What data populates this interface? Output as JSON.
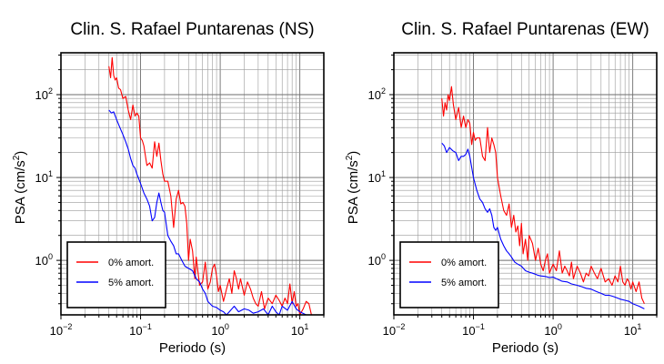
{
  "chart_data": [
    {
      "type": "line",
      "title": "Clin. S. Rafael Puntarenas (NS)",
      "xlabel": "Periodo (s)",
      "ylabel": "PSA (cm/s²)",
      "ylabel_base": "PSA (cm/s",
      "ylabel_sup": "2",
      "ylabel_tail": ")",
      "xscale": "log",
      "yscale": "log",
      "xlim": [
        0.01,
        20
      ],
      "ylim": [
        0.22,
        320
      ],
      "grid": true,
      "legend_position": "bottom-left",
      "xticks": [
        {
          "value": 0.01,
          "base": "10",
          "exp": "−2"
        },
        {
          "value": 0.1,
          "base": "10",
          "exp": "−1"
        },
        {
          "value": 1,
          "base": "10",
          "exp": "0"
        },
        {
          "value": 10,
          "base": "10",
          "exp": "1"
        }
      ],
      "yticks": [
        {
          "value": 1,
          "base": "10",
          "exp": "0"
        },
        {
          "value": 10,
          "base": "10",
          "exp": "1"
        },
        {
          "value": 100,
          "base": "10",
          "exp": "2"
        }
      ],
      "series": [
        {
          "name": "0% amort.",
          "color": "#ff0000",
          "x": [
            0.04,
            0.042,
            0.044,
            0.046,
            0.048,
            0.05,
            0.053,
            0.056,
            0.06,
            0.065,
            0.07,
            0.075,
            0.08,
            0.085,
            0.09,
            0.095,
            0.1,
            0.105,
            0.11,
            0.12,
            0.13,
            0.14,
            0.15,
            0.16,
            0.17,
            0.18,
            0.19,
            0.2,
            0.22,
            0.24,
            0.26,
            0.28,
            0.3,
            0.32,
            0.34,
            0.36,
            0.38,
            0.4,
            0.42,
            0.45,
            0.48,
            0.5,
            0.55,
            0.6,
            0.65,
            0.7,
            0.75,
            0.8,
            0.85,
            0.9,
            0.95,
            1.0,
            1.1,
            1.2,
            1.3,
            1.4,
            1.5,
            1.6,
            1.7,
            1.8,
            2.0,
            2.2,
            2.4,
            2.6,
            2.8,
            3.0,
            3.3,
            3.6,
            4.0,
            4.5,
            5.0,
            5.5,
            6.0,
            6.5,
            7.0,
            7.5,
            8.0,
            8.5,
            9.0,
            9.5,
            10.0,
            11.0,
            12.0,
            13.0,
            14.0
          ],
          "y": [
            220,
            160,
            280,
            170,
            150,
            160,
            120,
            115,
            90,
            95,
            65,
            50,
            75,
            55,
            60,
            55,
            30,
            28,
            24,
            14,
            15,
            13,
            27,
            18,
            26,
            16,
            11,
            9,
            9,
            6,
            2.5,
            5.5,
            7,
            4.8,
            5,
            4.5,
            2.8,
            1.0,
            1.8,
            1.3,
            0.6,
            1.1,
            0.5,
            0.55,
            0.95,
            0.45,
            0.55,
            0.8,
            0.9,
            0.65,
            0.42,
            0.5,
            0.32,
            0.45,
            0.6,
            0.4,
            0.75,
            0.6,
            0.45,
            0.6,
            0.38,
            0.55,
            0.45,
            0.35,
            0.3,
            0.28,
            0.42,
            0.26,
            0.35,
            0.3,
            0.38,
            0.33,
            0.28,
            0.35,
            0.3,
            0.52,
            0.3,
            0.42,
            0.28,
            0.3,
            0.22,
            0.26,
            0.32,
            0.3,
            0.22
          ]
        },
        {
          "name": "5% amort.",
          "color": "#0000ff",
          "x": [
            0.04,
            0.043,
            0.046,
            0.05,
            0.055,
            0.06,
            0.065,
            0.07,
            0.075,
            0.08,
            0.085,
            0.09,
            0.1,
            0.11,
            0.12,
            0.13,
            0.14,
            0.15,
            0.16,
            0.17,
            0.18,
            0.19,
            0.2,
            0.22,
            0.24,
            0.26,
            0.28,
            0.3,
            0.33,
            0.36,
            0.4,
            0.45,
            0.5,
            0.55,
            0.6,
            0.65,
            0.7,
            0.8,
            0.9,
            1.0,
            1.1,
            1.2,
            1.3,
            1.5,
            1.7,
            2.0,
            2.3,
            2.6,
            3.0,
            3.5,
            4.0,
            4.5,
            5.0,
            5.5,
            6.0,
            7.0,
            8.0,
            9.0,
            10.0,
            12.0,
            14.0
          ],
          "y": [
            65,
            60,
            62,
            50,
            40,
            33,
            27,
            22,
            17,
            14,
            13,
            11,
            8.5,
            6.5,
            5.5,
            4.5,
            3.0,
            3.3,
            5.0,
            6.5,
            5.0,
            4.0,
            3.8,
            2.0,
            1.7,
            1.5,
            1.2,
            1.2,
            1.0,
            0.85,
            0.8,
            0.75,
            0.6,
            0.55,
            0.45,
            0.4,
            0.32,
            0.28,
            0.27,
            0.25,
            0.24,
            0.22,
            0.24,
            0.28,
            0.24,
            0.26,
            0.25,
            0.23,
            0.24,
            0.26,
            0.22,
            0.28,
            0.24,
            0.22,
            0.28,
            0.25,
            0.32,
            0.26,
            0.24,
            0.22,
            0.22
          ]
        }
      ]
    },
    {
      "type": "line",
      "title": "Clin. S. Rafael Puntarenas (EW)",
      "xlabel": "Periodo (s)",
      "ylabel": "PSA (cm/s²)",
      "ylabel_base": "PSA (cm/s",
      "ylabel_sup": "2",
      "ylabel_tail": ")",
      "xscale": "log",
      "yscale": "log",
      "xlim": [
        0.01,
        20
      ],
      "ylim": [
        0.22,
        320
      ],
      "grid": true,
      "legend_position": "bottom-left",
      "xticks": [
        {
          "value": 0.01,
          "base": "10",
          "exp": "−2"
        },
        {
          "value": 0.1,
          "base": "10",
          "exp": "−1"
        },
        {
          "value": 1,
          "base": "10",
          "exp": "0"
        },
        {
          "value": 10,
          "base": "10",
          "exp": "1"
        }
      ],
      "yticks": [
        {
          "value": 1,
          "base": "10",
          "exp": "0"
        },
        {
          "value": 10,
          "base": "10",
          "exp": "1"
        },
        {
          "value": 100,
          "base": "10",
          "exp": "2"
        }
      ],
      "series": [
        {
          "name": "0% amort.",
          "color": "#ff0000",
          "x": [
            0.04,
            0.042,
            0.044,
            0.046,
            0.048,
            0.05,
            0.053,
            0.056,
            0.06,
            0.065,
            0.07,
            0.075,
            0.08,
            0.085,
            0.09,
            0.095,
            0.1,
            0.105,
            0.11,
            0.12,
            0.13,
            0.14,
            0.15,
            0.16,
            0.17,
            0.18,
            0.19,
            0.2,
            0.22,
            0.24,
            0.26,
            0.28,
            0.3,
            0.32,
            0.34,
            0.36,
            0.38,
            0.4,
            0.42,
            0.45,
            0.48,
            0.5,
            0.55,
            0.6,
            0.65,
            0.7,
            0.75,
            0.8,
            0.85,
            0.9,
            0.95,
            1.0,
            1.1,
            1.2,
            1.3,
            1.4,
            1.5,
            1.6,
            1.7,
            1.8,
            2.0,
            2.2,
            2.4,
            2.6,
            2.8,
            3.0,
            3.3,
            3.6,
            4.0,
            4.5,
            5.0,
            5.5,
            6.0,
            6.5,
            7.0,
            7.5,
            8.0,
            8.5,
            9.0,
            9.5,
            10.0,
            11.0,
            12.0,
            13.0,
            14.0
          ],
          "y": [
            90,
            55,
            80,
            65,
            100,
            85,
            125,
            75,
            50,
            70,
            40,
            55,
            40,
            50,
            45,
            25,
            35,
            28,
            30,
            30,
            18,
            16,
            40,
            20,
            30,
            25,
            20,
            10,
            6,
            4,
            3.5,
            4.8,
            2.5,
            3.5,
            2.2,
            2.6,
            1.5,
            2.8,
            1.2,
            1.8,
            1.0,
            2.0,
            1.6,
            1.0,
            1.4,
            0.9,
            0.75,
            1.0,
            1.2,
            0.7,
            0.8,
            0.9,
            0.75,
            1.3,
            0.7,
            0.85,
            0.75,
            0.65,
            0.95,
            0.6,
            0.85,
            0.7,
            0.55,
            0.7,
            0.65,
            0.85,
            0.7,
            0.6,
            0.8,
            0.55,
            0.6,
            0.5,
            0.65,
            0.55,
            0.85,
            0.55,
            0.5,
            0.6,
            0.55,
            0.45,
            0.55,
            0.42,
            0.55,
            0.35,
            0.3
          ]
        },
        {
          "name": "5% amort.",
          "color": "#0000ff",
          "x": [
            0.04,
            0.043,
            0.046,
            0.05,
            0.055,
            0.06,
            0.065,
            0.07,
            0.075,
            0.08,
            0.085,
            0.09,
            0.1,
            0.11,
            0.12,
            0.13,
            0.14,
            0.15,
            0.16,
            0.17,
            0.18,
            0.19,
            0.2,
            0.22,
            0.24,
            0.26,
            0.28,
            0.3,
            0.33,
            0.36,
            0.4,
            0.45,
            0.5,
            0.55,
            0.6,
            0.65,
            0.7,
            0.8,
            0.9,
            1.0,
            1.1,
            1.2,
            1.3,
            1.5,
            1.7,
            2.0,
            2.3,
            2.6,
            3.0,
            3.5,
            4.0,
            4.5,
            5.0,
            5.5,
            6.0,
            7.0,
            8.0,
            9.0,
            10.0,
            12.0,
            14.0
          ],
          "y": [
            26,
            24,
            20,
            23,
            21,
            20,
            16,
            18,
            18,
            19,
            22,
            18,
            10,
            7,
            5.5,
            5.0,
            4.2,
            3.8,
            4.2,
            3.5,
            2.5,
            2.3,
            2.5,
            1.8,
            1.5,
            1.3,
            1.2,
            1.1,
            0.95,
            0.9,
            0.85,
            0.75,
            0.72,
            0.7,
            0.68,
            0.66,
            0.65,
            0.64,
            0.62,
            0.63,
            0.6,
            0.58,
            0.56,
            0.55,
            0.52,
            0.5,
            0.48,
            0.46,
            0.45,
            0.42,
            0.4,
            0.38,
            0.38,
            0.37,
            0.36,
            0.34,
            0.33,
            0.32,
            0.3,
            0.28,
            0.26
          ]
        }
      ]
    }
  ]
}
